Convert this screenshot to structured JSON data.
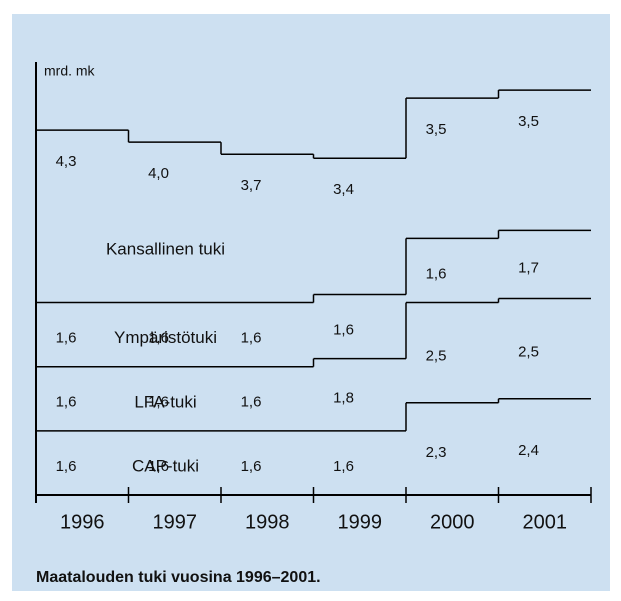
{
  "chart_data": {
    "type": "stacked-step",
    "title": "Maatalouden tuki vuosina 1996–2001.",
    "y_axis_label": "mrd. mk",
    "categories": [
      "1996",
      "1997",
      "1998",
      "1999",
      "2000",
      "2001"
    ],
    "ylim": [
      0,
      10.8
    ],
    "color": "#000000",
    "series": [
      {
        "name": "CAP-tuki",
        "values": [
          1.6,
          1.6,
          1.6,
          1.6,
          2.3,
          2.4
        ],
        "value_labels": [
          "1,6",
          "1,6",
          "1,6",
          "1,6",
          "2,3",
          "2,4"
        ]
      },
      {
        "name": "LFA-tuki",
        "values": [
          1.6,
          1.6,
          1.6,
          1.8,
          2.5,
          2.5
        ],
        "value_labels": [
          "1,6",
          "1,6",
          "1,6",
          "1,8",
          "2,5",
          "2,5"
        ]
      },
      {
        "name": "Ympäristötuki",
        "values": [
          1.6,
          1.6,
          1.6,
          1.6,
          1.6,
          1.7
        ],
        "value_labels": [
          "1,6",
          "1,6",
          "1,6",
          "1,6",
          "1,6",
          "1,7"
        ]
      },
      {
        "name": "Kansallinen tuki",
        "values": [
          4.3,
          4.0,
          3.7,
          3.4,
          3.5,
          3.5
        ],
        "value_labels": [
          "4,3",
          "4,0",
          "3,7",
          "3,4",
          "3,5",
          "3,5"
        ]
      }
    ]
  }
}
